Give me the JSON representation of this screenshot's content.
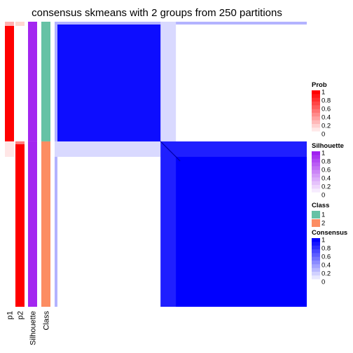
{
  "chart_data": {
    "type": "heatmap",
    "title": "consensus skmeans with 2 groups from 250 partitions",
    "annotation_columns": [
      "p1",
      "p2",
      "Silhouette",
      "Class"
    ],
    "n_samples": 100,
    "groups": [
      {
        "class": "1",
        "share": 0.42,
        "color": "#66C2A5",
        "silhouette": 0.97,
        "p1": 1.0,
        "p2": 0.0
      },
      {
        "class": "2",
        "share": 0.58,
        "color": "#FC8D62",
        "silhouette": 0.97,
        "p1": 0.0,
        "p2": 1.0
      }
    ],
    "legends": [
      {
        "title": "Prob",
        "ticks": [
          "1",
          "0.8",
          "0.6",
          "0.4",
          "0.2",
          "0"
        ],
        "low": "#FFFFFF",
        "high": "#FF0000"
      },
      {
        "title": "Silhouette",
        "ticks": [
          "1",
          "0.8",
          "0.6",
          "0.4",
          "0.2",
          "0"
        ],
        "low": "#FFFFFF",
        "high": "#A020F0"
      },
      {
        "title": "Class",
        "items": [
          {
            "label": "1",
            "color": "#66C2A5"
          },
          {
            "label": "2",
            "color": "#FC8D62"
          }
        ]
      },
      {
        "title": "Consensus",
        "ticks": [
          "1",
          "0.8",
          "0.6",
          "0.4",
          "0.2",
          "0"
        ],
        "low": "#FFFFFF",
        "high": "#0000FF"
      }
    ],
    "consensus_within_group": 1.0,
    "consensus_between_group": 0.0
  }
}
